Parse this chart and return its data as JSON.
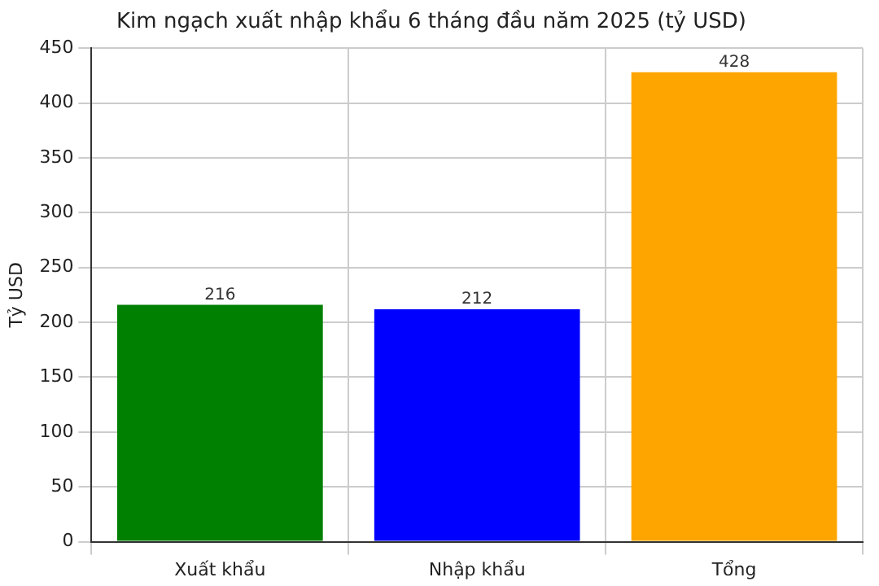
{
  "chart_data": {
    "type": "bar",
    "title": "Kim ngạch xuất nhập khẩu 6 tháng đầu năm 2025 (tỷ USD)",
    "ylabel": "Tỷ USD",
    "categories": [
      "Xuất khẩu",
      "Nhập khẩu",
      "Tổng"
    ],
    "values": [
      216,
      212,
      428
    ],
    "colors": [
      "#008000",
      "#0000ff",
      "#ffa500"
    ],
    "ylim": [
      0,
      450
    ],
    "yticks": [
      0,
      50,
      100,
      150,
      200,
      250,
      300,
      350,
      400,
      450
    ],
    "grid": true,
    "data_labels": true
  }
}
